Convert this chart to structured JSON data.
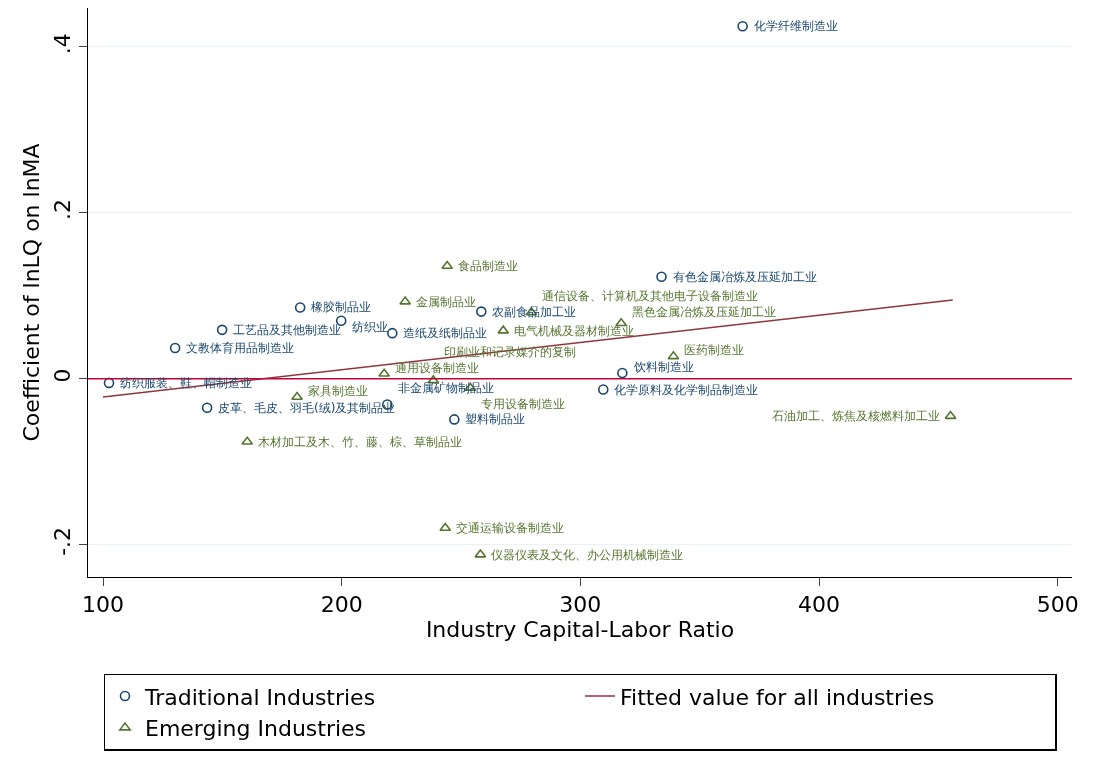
{
  "chart_data": {
    "type": "scatter",
    "xlabel": "Industry Capital-Labor Ratio",
    "ylabel": "Coefficient of lnLQ on lnMA",
    "xlim": [
      93.7,
      506
    ],
    "ylim": [
      -0.239,
      0.447
    ],
    "xticks": [
      100,
      200,
      300,
      400,
      500
    ],
    "yticks": [
      {
        "value": -0.2,
        "label": "-.2"
      },
      0,
      {
        "value": 0.2,
        "label": ".2"
      },
      {
        "value": 0.4,
        "label": ".4"
      }
    ],
    "grid": "y",
    "legend": "bottom",
    "series": [
      {
        "name": "Traditional Industries",
        "color": "#1a476f",
        "marker": "circle",
        "x": [
          368,
          334,
          182.6,
          199.8,
          149.9,
          221.2,
          258.5,
          130.2,
          102.5,
          317.6,
          309.6,
          143.6,
          219.1,
          247.2
        ],
        "values": [
          0.425,
          0.123,
          0.086,
          0.07,
          0.059,
          0.055,
          0.081,
          0.037,
          -0.005,
          0.007,
          -0.013,
          -0.035,
          -0.031,
          -0.049
        ]
      },
      {
        "name": "Fitted value for all industries",
        "type": "line",
        "color": "#90353b",
        "marker": "none",
        "line_style": "solid",
        "x": [
          100,
          456
        ],
        "values": [
          -0.022,
          0.095
        ]
      },
      {
        "name": "Emerging Industries",
        "color": "#55752f",
        "marker": "triangle",
        "x": [
          244.2,
          226.6,
          279.5,
          267.7,
          317.1,
          339,
          217.8,
          238.4,
          253.9,
          181.3,
          160.4,
          455.1,
          243.4,
          258.1
        ],
        "values": [
          0.136,
          0.093,
          0.08,
          0.058,
          0.067,
          0.027,
          0.006,
          -0.002,
          -0.011,
          -0.022,
          -0.076,
          -0.045,
          -0.18,
          -0.212
        ]
      }
    ],
    "ref_lines": [
      {
        "axis": "y",
        "value": 0,
        "color": "#c10534"
      }
    ],
    "annotations": [
      {
        "text": "化学纤维制造业",
        "x": 368,
        "y": 0.425
      },
      {
        "text": "有色金属冶炼及压延加工业",
        "x": 334,
        "y": 0.123
      },
      {
        "text": "橡胶制品业",
        "x": 182.6,
        "y": 0.086
      },
      {
        "text": "纺织业",
        "x": 199.8,
        "y": 0.07
      },
      {
        "text": "工艺品及其他制造业",
        "x": 149.9,
        "y": 0.059
      },
      {
        "text": "造纸及纸制品业",
        "x": 221.2,
        "y": 0.055
      },
      {
        "text": "农副食品加工业",
        "x": 258.5,
        "y": 0.081
      },
      {
        "text": "文教体育用品制造业",
        "x": 130.2,
        "y": 0.037
      },
      {
        "text": "纺织服装、鞋、帽制造业",
        "x": 102.5,
        "y": -0.005
      },
      {
        "text": "饮料制造业",
        "x": 317.6,
        "y": 0.007
      },
      {
        "text": "化学原料及化学制品制造业",
        "x": 309.6,
        "y": -0.013
      },
      {
        "text": "皮革、毛皮、羽毛(绒)及其制品业",
        "x": 143.6,
        "y": -0.035
      },
      {
        "text": "非金属矿物制品业",
        "x": 219.1,
        "y": -0.031
      },
      {
        "text": "塑料制品业",
        "x": 247.2,
        "y": -0.049
      },
      {
        "text": "食品制造业",
        "x": 244.2,
        "y": 0.136
      },
      {
        "text": "金属制品业",
        "x": 226.6,
        "y": 0.093
      },
      {
        "text": "通信设备、计算机及其他电子设备制造业",
        "x": 279.5,
        "y": 0.08
      },
      {
        "text": "电气机械及器材制造业",
        "x": 267.7,
        "y": 0.058
      },
      {
        "text": "黑色金属冶炼及压延加工业",
        "x": 317.1,
        "y": 0.067
      },
      {
        "text": "医药制造业",
        "x": 339,
        "y": 0.027
      },
      {
        "text": "通用设备制造业",
        "x": 217.8,
        "y": 0.006
      },
      {
        "text": "印刷业和记录媒介的复制",
        "x": 238.4,
        "y": -0.002
      },
      {
        "text": "专用设备制造业",
        "x": 253.9,
        "y": -0.011
      },
      {
        "text": "家具制造业",
        "x": 181.3,
        "y": -0.022
      },
      {
        "text": "木材加工及木、竹、藤、棕、草制品业",
        "x": 160.4,
        "y": -0.076
      },
      {
        "text": "石油加工、炼焦及核燃料加工业",
        "x": 455.1,
        "y": -0.045
      },
      {
        "text": "交通运输设备制造业",
        "x": 243.4,
        "y": -0.18
      },
      {
        "text": "仪器仪表及文化、办公用机械制造业",
        "x": 258.1,
        "y": -0.212
      }
    ]
  }
}
